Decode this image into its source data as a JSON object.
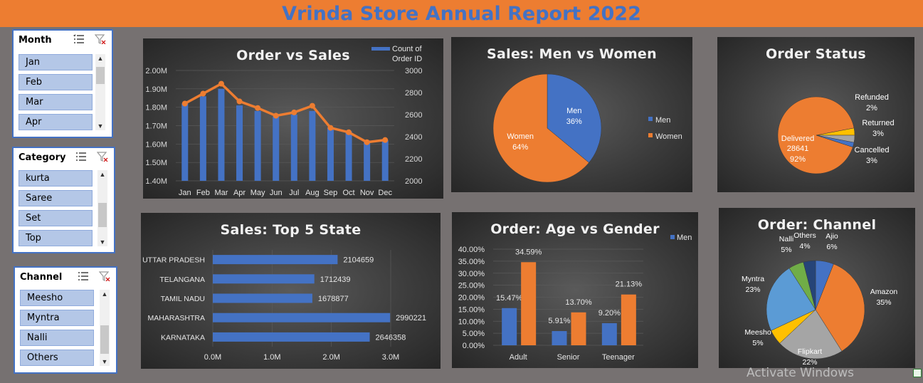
{
  "header": {
    "title": "Vrinda Store Annual Report 2022"
  },
  "slicers": [
    {
      "name": "month",
      "title": "Month",
      "items": [
        "Jan",
        "Feb",
        "Mar",
        "Apr"
      ]
    },
    {
      "name": "category",
      "title": "Category",
      "items": [
        "kurta",
        "Saree",
        "Set",
        "Top"
      ]
    },
    {
      "name": "channel",
      "title": "Channel",
      "items": [
        "Meesho",
        "Myntra",
        "Nalli",
        "Others"
      ]
    }
  ],
  "watermark": "Activate Windows",
  "charts": {
    "order_sales": {
      "title": "Order vs Sales",
      "legend": "Count of Order ID"
    },
    "men_women": {
      "title": "Sales: Men vs Women"
    },
    "order_status": {
      "title": "Order Status"
    },
    "top_state": {
      "title": "Sales: Top 5 State"
    },
    "age_gender": {
      "title": "Order: Age vs Gender",
      "legend": "Men"
    },
    "channel": {
      "title": "Order: Channel"
    }
  },
  "colors": {
    "blue": "#4472c4",
    "orange": "#ed7d31",
    "gray": "#a5a5a5",
    "yellow": "#ffc000",
    "lightblue": "#5b9bd5",
    "green": "#70ad47",
    "navy": "#264478"
  },
  "chart_data": [
    {
      "type": "bar",
      "name": "order_sales",
      "title": "Order vs Sales",
      "categories": [
        "Jan",
        "Feb",
        "Mar",
        "Apr",
        "May",
        "Jun",
        "Jul",
        "Aug",
        "Sep",
        "Oct",
        "Nov",
        "Dec"
      ],
      "y_ticks": [
        "2.00M",
        "1.90M",
        "1.80M",
        "1.70M",
        "1.60M",
        "1.50M",
        "1.40M"
      ],
      "y2_ticks": [
        "3000",
        "2800",
        "2600",
        "2400",
        "2200",
        "2000"
      ],
      "ylim": [
        1.4,
        2.0
      ],
      "y2lim": [
        2000,
        3000
      ],
      "series": [
        {
          "name": "Count of Order ID",
          "type": "bar",
          "values": [
            1.82,
            1.86,
            1.9,
            1.81,
            1.78,
            1.75,
            1.76,
            1.78,
            1.69,
            1.67,
            1.62,
            1.62
          ]
        },
        {
          "name": "",
          "type": "line",
          "values": [
            2700,
            2790,
            2880,
            2720,
            2660,
            2590,
            2620,
            2680,
            2480,
            2440,
            2350,
            2370
          ]
        }
      ]
    },
    {
      "type": "pie",
      "name": "men_women",
      "title": "Sales: Men vs Women",
      "slices": [
        {
          "label": "Men",
          "value": 36,
          "text": "36%",
          "color": "#4472c4"
        },
        {
          "label": "Women",
          "value": 64,
          "text": "64%",
          "color": "#ed7d31"
        }
      ],
      "legend": [
        "Men",
        "Women"
      ]
    },
    {
      "type": "pie",
      "name": "order_status",
      "title": "Order Status",
      "slices": [
        {
          "label": "Delivered",
          "value": 92,
          "count": "28641",
          "text": "92%",
          "color": "#ed7d31"
        },
        {
          "label": "Cancelled",
          "value": 3,
          "text": "3%",
          "color": "#ffc000"
        },
        {
          "label": "Returned",
          "value": 3,
          "text": "3%",
          "color": "#a5a5a5"
        },
        {
          "label": "Refunded",
          "value": 2,
          "text": "2%",
          "color": "#4472c4"
        }
      ]
    },
    {
      "type": "bar",
      "name": "top_state",
      "title": "Sales: Top 5 State",
      "orientation": "horizontal",
      "categories": [
        "UTTAR PRADESH",
        "TELANGANA",
        "TAMIL NADU",
        "MAHARASHTRA",
        "KARNATAKA"
      ],
      "values": [
        2104659,
        1712439,
        1678877,
        2990221,
        2646358
      ],
      "x_ticks": [
        "0.0M",
        "1.0M",
        "2.0M",
        "3.0M"
      ],
      "xlim": [
        0,
        3000000
      ]
    },
    {
      "type": "bar",
      "name": "age_gender",
      "title": "Order: Age vs Gender",
      "categories": [
        "Adult",
        "Senior",
        "Teenager"
      ],
      "y_ticks": [
        "40.00%",
        "35.00%",
        "30.00%",
        "25.00%",
        "20.00%",
        "15.00%",
        "10.00%",
        "5.00%",
        "0.00%"
      ],
      "ylim": [
        0,
        40
      ],
      "series": [
        {
          "name": "Men",
          "values": [
            15.47,
            5.91,
            9.2
          ],
          "labels": [
            "15.47%",
            "5.91%",
            "9.20%"
          ]
        },
        {
          "name": "",
          "values": [
            34.59,
            13.7,
            21.13
          ],
          "labels": [
            "34.59%",
            "13.70%",
            "21.13%"
          ]
        }
      ]
    },
    {
      "type": "pie",
      "name": "channel",
      "title": "Order: Channel",
      "slices": [
        {
          "label": "Ajio",
          "value": 6,
          "text": "6%",
          "color": "#4472c4"
        },
        {
          "label": "Amazon",
          "value": 35,
          "text": "35%",
          "color": "#ed7d31"
        },
        {
          "label": "Flipkart",
          "value": 22,
          "text": "22%",
          "color": "#a5a5a5"
        },
        {
          "label": "Meesho",
          "value": 5,
          "text": "5%",
          "color": "#ffc000"
        },
        {
          "label": "Myntra",
          "value": 23,
          "text": "23%",
          "color": "#5b9bd5"
        },
        {
          "label": "Nalli",
          "value": 5,
          "text": "5%",
          "color": "#70ad47"
        },
        {
          "label": "Others",
          "value": 4,
          "text": "4%",
          "color": "#264478"
        }
      ]
    }
  ]
}
